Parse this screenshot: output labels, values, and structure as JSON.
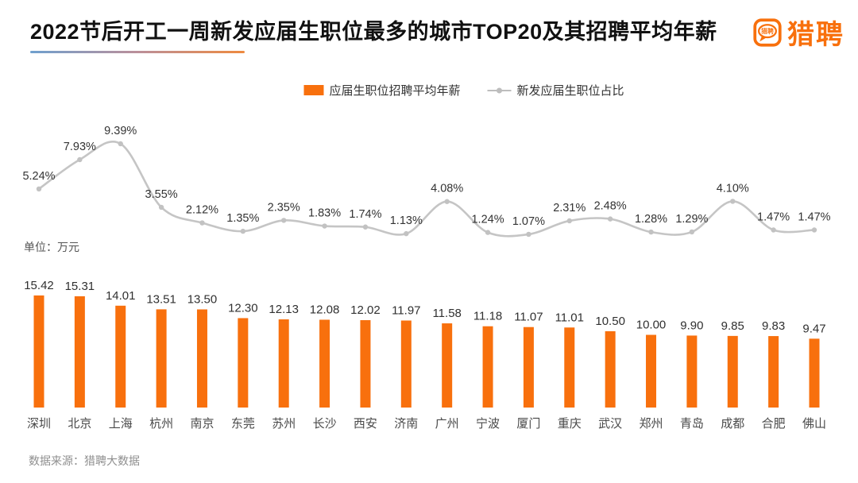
{
  "header": {
    "title": "2022节后开工一周新发应届生职位最多的城市TOP20及其招聘平均年薪",
    "logo": {
      "brand_text": "猎聘",
      "bubble_text": "猎聘"
    }
  },
  "legend": {
    "bar_series_label": "应届生职位招聘平均年薪",
    "line_series_label": "新发应届生职位占比"
  },
  "unit_label": "单位：万元",
  "footer": {
    "data_source": "数据来源：猎聘大数据"
  },
  "colors": {
    "brand_orange": "#F8700D",
    "bar": "#F8700D",
    "line": "#C5C5C5",
    "line_marker": "#C2C2C2",
    "label_dark": "#333333",
    "underline_start": "#6FA0CE",
    "underline_end": "#EE8A3F"
  },
  "chart_data": {
    "type": "bar",
    "subtype": "combo-bar-line",
    "title": "2022节后开工一周新发应届生职位最多的城市TOP20及其招聘平均年薪",
    "categories": [
      "深圳",
      "北京",
      "上海",
      "杭州",
      "南京",
      "东莞",
      "苏州",
      "长沙",
      "西安",
      "济南",
      "广州",
      "宁波",
      "厦门",
      "重庆",
      "武汉",
      "郑州",
      "青岛",
      "成都",
      "合肥",
      "佛山"
    ],
    "series": [
      {
        "name": "应届生职位招聘平均年薪",
        "type": "bar",
        "unit": "万元",
        "color": "#F8700D",
        "values": [
          15.42,
          15.31,
          14.01,
          13.51,
          13.5,
          12.3,
          12.13,
          12.08,
          12.02,
          11.97,
          11.58,
          11.18,
          11.07,
          11.01,
          10.5,
          10.0,
          9.9,
          9.85,
          9.83,
          9.47
        ]
      },
      {
        "name": "新发应届生职位占比",
        "type": "line",
        "unit": "%",
        "color": "#C5C5C5",
        "values": [
          5.24,
          7.93,
          9.39,
          3.55,
          2.12,
          1.35,
          2.35,
          1.83,
          1.74,
          1.13,
          4.08,
          1.24,
          1.07,
          2.31,
          2.48,
          1.28,
          1.29,
          4.1,
          1.47,
          1.47
        ]
      }
    ],
    "value_labels": true,
    "grid": false,
    "axes_visible": false,
    "legend_position": "top"
  }
}
